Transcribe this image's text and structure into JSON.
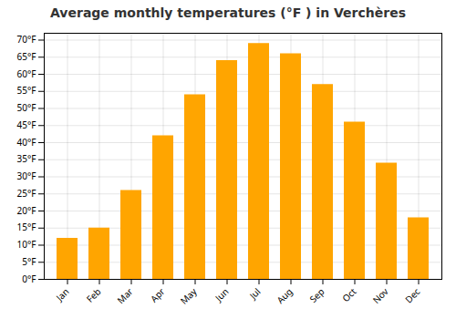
{
  "chart_data": {
    "type": "bar",
    "title": "Average monthly temperatures (°F ) in Verchères",
    "categories": [
      "Jan",
      "Feb",
      "Mar",
      "Apr",
      "May",
      "Jun",
      "Jul",
      "Aug",
      "Sep",
      "Oct",
      "Nov",
      "Dec"
    ],
    "values": [
      12,
      15,
      26,
      42,
      54,
      64,
      69,
      66,
      57,
      46,
      34,
      18
    ],
    "color": "#FFA500",
    "ylim": [
      0,
      72
    ],
    "yticks": [
      {
        "value": 0,
        "label": "0°F"
      },
      {
        "value": 5,
        "label": "5°F"
      },
      {
        "value": 10,
        "label": "10°F"
      },
      {
        "value": 15,
        "label": "15°F"
      },
      {
        "value": 20,
        "label": "20°F"
      },
      {
        "value": 25,
        "label": "25°F"
      },
      {
        "value": 30,
        "label": "30°F"
      },
      {
        "value": 35,
        "label": "35°F"
      },
      {
        "value": 40,
        "label": "40°F"
      },
      {
        "value": 45,
        "label": "45°F"
      },
      {
        "value": 50,
        "label": "50°F"
      },
      {
        "value": 55,
        "label": "55°F"
      },
      {
        "value": 60,
        "label": "60°F"
      },
      {
        "value": 65,
        "label": "65°F"
      },
      {
        "value": 70,
        "label": "70°F"
      }
    ],
    "grid": true
  }
}
